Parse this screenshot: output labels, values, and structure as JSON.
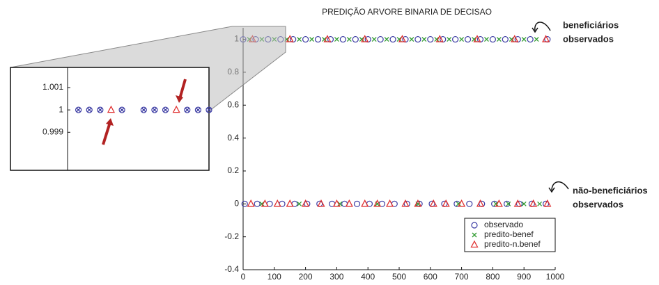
{
  "chart_data": [
    {
      "type": "scatter",
      "title": "PREDIÇÃO ARVORE BINARIA DE DECISAO",
      "xlim": [
        0,
        1000
      ],
      "xticks": [
        0,
        100,
        200,
        300,
        400,
        500,
        600,
        700,
        800,
        900,
        1000
      ],
      "ylim": [
        -0.4,
        1.07
      ],
      "yticks": [
        -0.4,
        -0.2,
        0,
        0.2,
        0.4,
        0.6,
        0.8,
        1
      ],
      "legend": "lower right",
      "annotations": [
        [
          "beneficiários",
          "observados"
        ],
        [
          "não-beneficiários",
          "observados"
        ]
      ],
      "series": [
        {
          "name": "observado",
          "color": "#3b3ba3",
          "marker": "o",
          "x": [
            0,
            40,
            80,
            120,
            160,
            200,
            240,
            280,
            320,
            360,
            400,
            440,
            480,
            520,
            560,
            600,
            640,
            680,
            720,
            760,
            800,
            840,
            880,
            920,
            975,
            5,
            45,
            85,
            125,
            165,
            205,
            245,
            285,
            325,
            365,
            405,
            445,
            485,
            525,
            565,
            605,
            645,
            685,
            725,
            765,
            805,
            845,
            885,
            925,
            970
          ],
          "values": [
            1,
            1,
            1,
            1,
            1,
            1,
            1,
            1,
            1,
            1,
            1,
            1,
            1,
            1,
            1,
            1,
            1,
            1,
            1,
            1,
            1,
            1,
            1,
            1,
            1,
            0,
            0,
            0,
            0,
            0,
            0,
            0,
            0,
            0,
            0,
            0,
            0,
            0,
            0,
            0,
            0,
            0,
            0,
            0,
            0,
            0,
            0,
            0,
            0,
            0
          ]
        },
        {
          "name": "predito-benef",
          "color": "#2e9a2e",
          "marker": "x",
          "x": [
            20,
            60,
            100,
            140,
            180,
            220,
            260,
            300,
            340,
            380,
            420,
            460,
            500,
            540,
            580,
            620,
            660,
            700,
            740,
            780,
            820,
            860,
            900,
            940,
            60,
            180,
            310,
            430,
            560,
            690,
            810,
            850,
            900,
            950
          ],
          "values": [
            1,
            1,
            1,
            1,
            1,
            1,
            1,
            1,
            1,
            1,
            1,
            1,
            1,
            1,
            1,
            1,
            1,
            1,
            1,
            1,
            1,
            1,
            1,
            1,
            0,
            0,
            0,
            0,
            0,
            0,
            0,
            0,
            0,
            0
          ]
        },
        {
          "name": "predito-n.benef",
          "color": "#e03030",
          "marker": "^",
          "x": [
            30,
            150,
            270,
            390,
            510,
            630,
            750,
            870,
            970,
            25,
            70,
            110,
            150,
            200,
            250,
            300,
            340,
            390,
            430,
            470,
            520,
            560,
            610,
            650,
            700,
            760,
            820,
            880,
            930,
            975
          ],
          "values": [
            1,
            1,
            1,
            1,
            1,
            1,
            1,
            1,
            1,
            0,
            0,
            0,
            0,
            0,
            0,
            0,
            0,
            0,
            0,
            0,
            0,
            0,
            0,
            0,
            0,
            0,
            0,
            0,
            0,
            0
          ]
        }
      ]
    },
    {
      "type": "scatter",
      "xlim": [
        0,
        13
      ],
      "ylim": [
        0.9973,
        1.0019
      ],
      "yticks": [
        0.999,
        1,
        1.001
      ],
      "series": [
        {
          "color": "#3b3ba3",
          "marker": "o",
          "x": [
            1,
            2,
            3,
            5,
            7,
            8,
            9,
            11,
            12,
            13
          ],
          "values": [
            1,
            1,
            1,
            1,
            1,
            1,
            1,
            1,
            1,
            1
          ]
        },
        {
          "color": "#3b3ba3",
          "marker": "x",
          "x": [
            1,
            2,
            3,
            5,
            7,
            8,
            9,
            11,
            12,
            13
          ],
          "values": [
            1,
            1,
            1,
            1,
            1,
            1,
            1,
            1,
            1,
            1
          ]
        },
        {
          "color": "#e03030",
          "marker": "^",
          "x": [
            4,
            10
          ],
          "values": [
            1,
            1
          ]
        }
      ]
    }
  ]
}
